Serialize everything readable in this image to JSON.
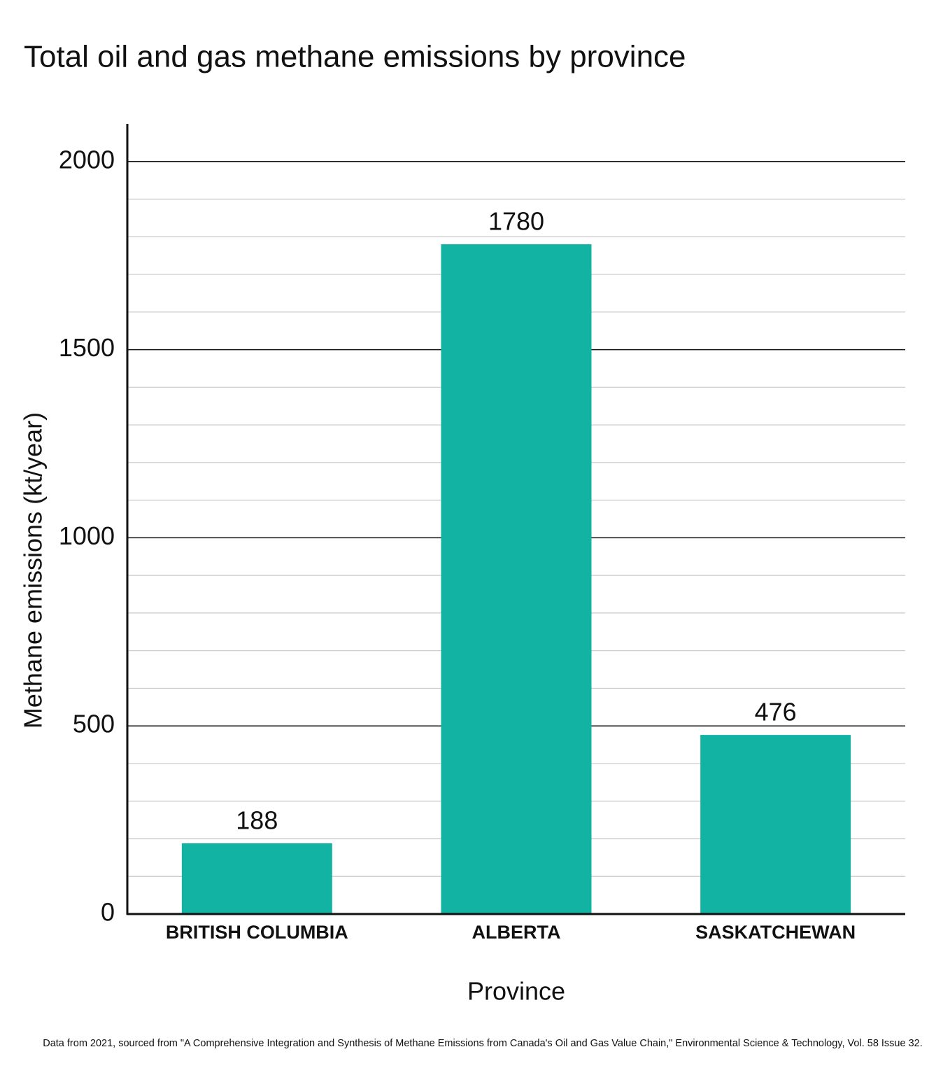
{
  "chart_data": {
    "type": "bar",
    "title": "Total oil and gas methane emissions by province",
    "x_label": "Province",
    "y_label": "Methane emissions (kt/year)",
    "note": "Data from 2021, sourced from \"A Comprehensive Integration and Synthesis of Methane Emissions from Canada's Oil and Gas Value Chain,\" Environmental Science & Technology, Vol. 58 Issue 32.",
    "categories": [
      "BRITISH COLUMBIA",
      "ALBERTA",
      "SASKATCHEWAN"
    ],
    "values": [
      188,
      1780,
      476
    ],
    "color": "#13b3a4",
    "ylim": [
      0,
      2100
    ],
    "yticks": [
      0,
      500,
      1000,
      1500,
      2000
    ],
    "minor_yticks": [
      100,
      200,
      300,
      400,
      600,
      700,
      800,
      900,
      1100,
      1200,
      1300,
      1400,
      1600,
      1700,
      1800,
      1900
    ],
    "grid": true
  }
}
